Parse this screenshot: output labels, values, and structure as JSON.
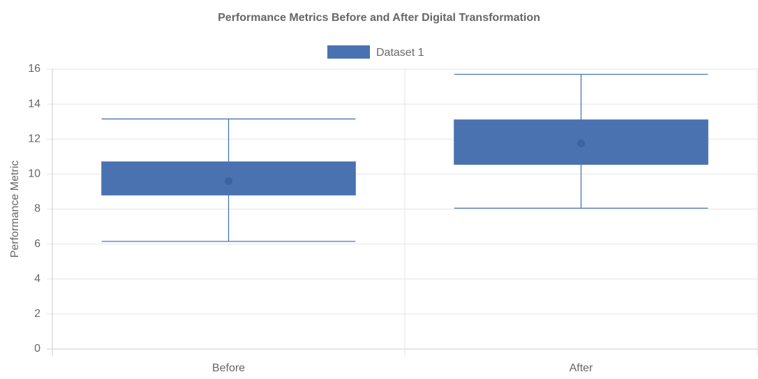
{
  "chart_data": {
    "type": "boxplot",
    "title": "Performance Metrics Before and After Digital Transformation",
    "xlabel": "",
    "ylabel": "Performance Metric",
    "ylim": [
      0,
      16
    ],
    "yticks": [
      0,
      2,
      4,
      6,
      8,
      10,
      12,
      14,
      16
    ],
    "grid": true,
    "legend_position": "top",
    "categories": [
      "Before",
      "After"
    ],
    "series": [
      {
        "name": "Dataset 1",
        "color": "#4a72b0",
        "boxes": [
          {
            "category": "Before",
            "min": 6.15,
            "q1": 8.8,
            "q3": 10.7,
            "max": 13.15,
            "mean": 9.6
          },
          {
            "category": "After",
            "min": 8.05,
            "q1": 10.55,
            "q3": 13.1,
            "max": 15.7,
            "mean": 11.75
          }
        ]
      }
    ]
  }
}
